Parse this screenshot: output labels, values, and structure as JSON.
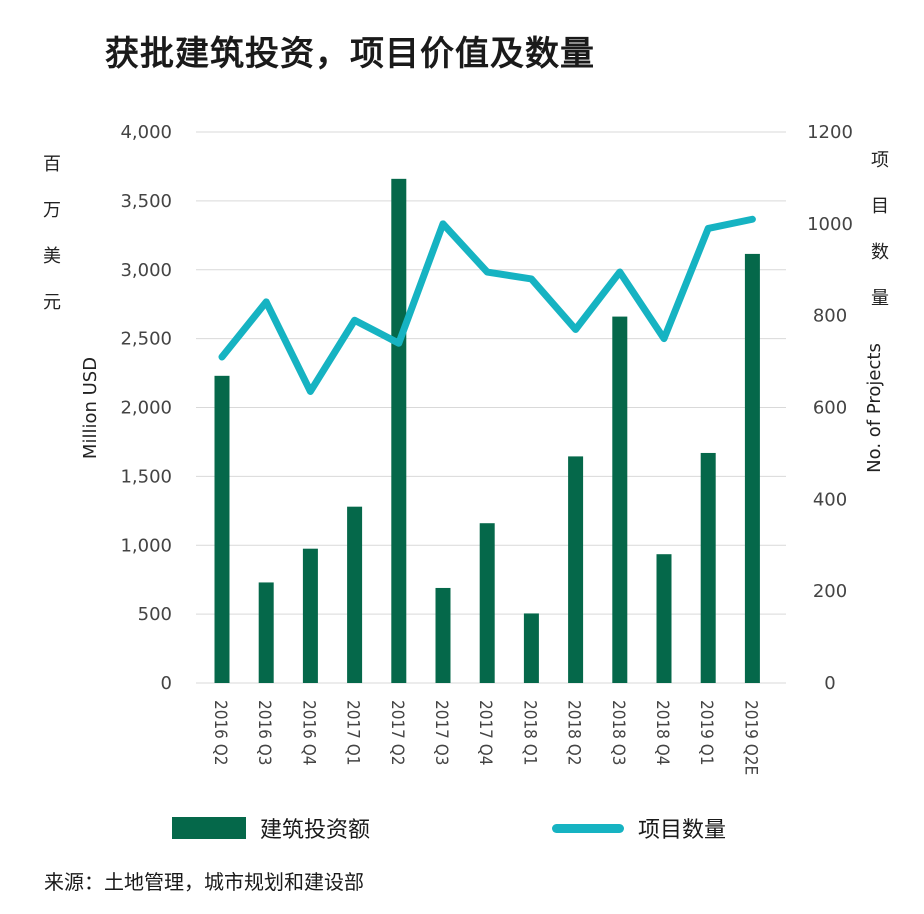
{
  "title": "获批建筑投资，项目价值及数量",
  "source": "来源：土地管理，城市规划和建设部",
  "chart_data": {
    "type": "bar",
    "categories": [
      "2016 Q2",
      "2016 Q3",
      "2016 Q4",
      "2017 Q1",
      "2017 Q2",
      "2017 Q3",
      "2017 Q4",
      "2018 Q1",
      "2018 Q2",
      "2018 Q3",
      "2018 Q4",
      "2019 Q1",
      "2019 Q2E"
    ],
    "series": [
      {
        "name": "建筑投资额",
        "type": "bar",
        "axis": "left",
        "color": "#05684a",
        "values": [
          2230,
          730,
          975,
          1280,
          3660,
          690,
          1160,
          505,
          1645,
          2660,
          935,
          1670,
          3115
        ]
      },
      {
        "name": "项目数量",
        "type": "line",
        "axis": "right",
        "color": "#16b3c2",
        "values": [
          710,
          830,
          635,
          790,
          740,
          1000,
          895,
          880,
          770,
          895,
          750,
          990,
          1010
        ]
      }
    ],
    "y_left": {
      "label_cn": [
        "百",
        "万",
        "美",
        "元"
      ],
      "label_en": "Million USD",
      "ylim": [
        0,
        4000
      ],
      "ticks": [
        "0",
        "500",
        "1,000",
        "1,500",
        "2,000",
        "2,500",
        "3,000",
        "3,500",
        "4,000"
      ]
    },
    "y_right": {
      "label_cn": [
        "项",
        "目",
        "数",
        "量"
      ],
      "label_en": "No. of Projects",
      "ylim": [
        0,
        1200
      ],
      "ticks": [
        "0",
        "200",
        "400",
        "600",
        "800",
        "1000",
        "1200"
      ]
    },
    "x_tick_labels": [
      "2016 Q2",
      "2016 Q3",
      "2016 Q4",
      "2017 Q1",
      "2017 Q2",
      "2017 Q3",
      "2017 Q4",
      "2018 Q1",
      "2018 Q2",
      "2018 Q3",
      "2018 Q4",
      "2019 Q1",
      "2019 Q2E"
    ],
    "grid": true,
    "legend_position": "bottom"
  }
}
